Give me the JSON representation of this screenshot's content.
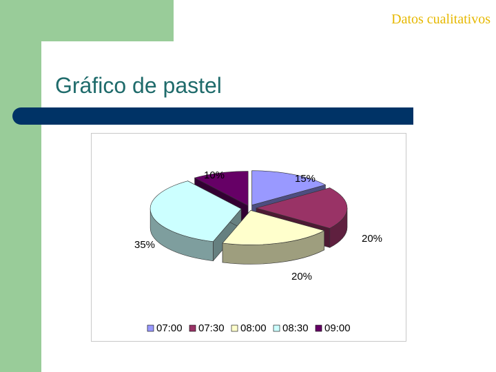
{
  "slide": {
    "header": "Datos cualitativos",
    "title": "Gráfico de pastel"
  },
  "colors": {
    "accent_green": "#99cc99",
    "title_bar": "#003366",
    "header_text": "#e6b800",
    "title_text": "#1f6b6b"
  },
  "chart_data": {
    "type": "pie",
    "style": "3d-exploded",
    "categories": [
      "07:00",
      "07:30",
      "08:00",
      "08:30",
      "09:00"
    ],
    "values": [
      15,
      20,
      20,
      35,
      10
    ],
    "labels": [
      "15%",
      "20%",
      "20%",
      "35%",
      "10%"
    ],
    "colors": [
      "#9999ff",
      "#993366",
      "#ffffcc",
      "#ccffff",
      "#660066"
    ],
    "legend": "bottom"
  }
}
